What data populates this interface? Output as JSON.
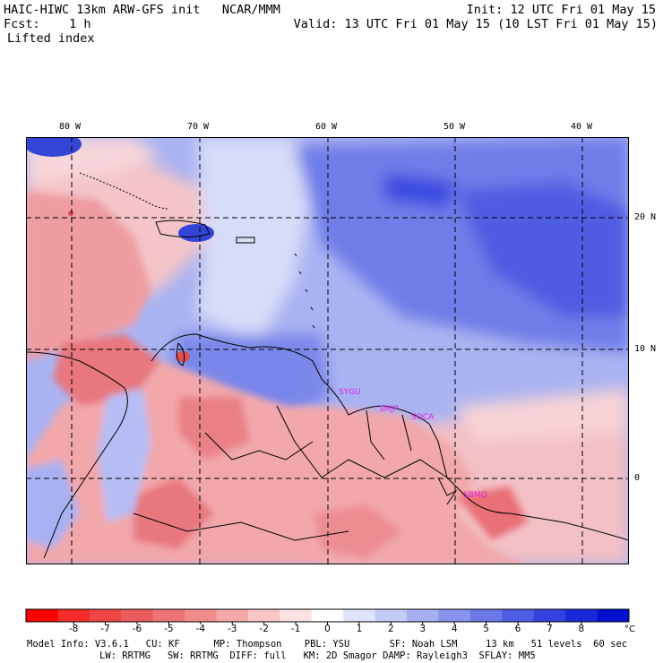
{
  "header": {
    "title_line": "HAIC-HIWC 13km ARW-GFS init   NCAR/MMM",
    "fcst_line": "Fcst:    1 h",
    "field_line": "Lifted index",
    "init_line": "Init: 12 UTC Fri 01 May 15",
    "valid_line": "Valid: 13 UTC Fri 01 May 15 (10 LST Fri 01 May 15)"
  },
  "map": {
    "lon_labels": [
      "80 W",
      "70 W",
      "60 W",
      "50 W",
      "40 W"
    ],
    "lat_labels": [
      "20 N",
      "10 N",
      "0"
    ],
    "station_labels": [
      "SYGU",
      "SMJP",
      "SOCA",
      "SBMQ"
    ],
    "colors": {
      "ocean_blue": "#7f8fe8",
      "deep_blue": "#3a4fe0",
      "land_pink": "#f2a0a0",
      "red": "#e85050",
      "station_magenta": "#e020e0"
    }
  },
  "colorbar": {
    "labels": [
      "-8",
      "-7",
      "-6",
      "-5",
      "-4",
      "-3",
      "-2",
      "-1",
      "0",
      "1",
      "2",
      "3",
      "4",
      "5",
      "6",
      "7",
      "8"
    ],
    "unit": "°C",
    "colors": [
      "#ff0000",
      "#f52a2a",
      "#ee4545",
      "#ea5b5b",
      "#ed7474",
      "#f08c8c",
      "#f4a8a8",
      "#f8c6c6",
      "#fce3e3",
      "#ffffff",
      "#dfe4fb",
      "#c4cbf6",
      "#a5aff1",
      "#8793ec",
      "#6a78e8",
      "#4e5de3",
      "#3342de",
      "#1a29d8",
      "#0010d0"
    ]
  },
  "footer": {
    "line1": "Model Info: V3.6.1   CU: KF      MP: Thompson    PBL: YSU       SF: Noah LSM     13 km   51 levels  60 sec",
    "line2": "LW: RRTMG   SW: RRTMG  DIFF: full   KM: 2D Smagor DAMP: Rayleigh3  SFLAY: MM5"
  }
}
